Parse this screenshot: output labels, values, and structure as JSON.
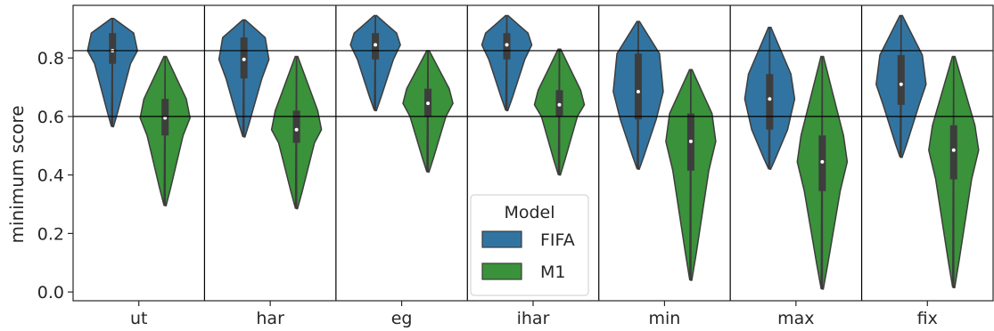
{
  "chart_data": {
    "type": "violin",
    "ylabel": "minimum score",
    "xlabel": "",
    "categories": [
      "ut",
      "har",
      "eg",
      "ihar",
      "min",
      "max",
      "fix"
    ],
    "ylim": [
      -0.03,
      0.98
    ],
    "yticks": [
      0.0,
      0.2,
      0.4,
      0.6,
      0.8
    ],
    "ytick_labels": [
      "0.0",
      "0.2",
      "0.4",
      "0.6",
      "0.8"
    ],
    "hlines": [
      0.6,
      0.825
    ],
    "vertical_separators": true,
    "legend": {
      "title": "Model",
      "position": "lower center",
      "entries": [
        "FIFA",
        "M1"
      ]
    },
    "colors": {
      "FIFA": "#3274a1",
      "M1": "#3a923a",
      "edge": "#3d3d3d"
    },
    "series": [
      {
        "name": "FIFA",
        "stats": [
          {
            "min": 0.565,
            "q1": 0.78,
            "median": 0.825,
            "q3": 0.885,
            "max": 0.935
          },
          {
            "min": 0.53,
            "q1": 0.73,
            "median": 0.795,
            "q3": 0.87,
            "max": 0.93
          },
          {
            "min": 0.62,
            "q1": 0.795,
            "median": 0.845,
            "q3": 0.885,
            "max": 0.945
          },
          {
            "min": 0.62,
            "q1": 0.795,
            "median": 0.845,
            "q3": 0.885,
            "max": 0.945
          },
          {
            "min": 0.42,
            "q1": 0.59,
            "median": 0.685,
            "q3": 0.815,
            "max": 0.925
          },
          {
            "min": 0.42,
            "q1": 0.555,
            "median": 0.66,
            "q3": 0.745,
            "max": 0.905
          },
          {
            "min": 0.46,
            "q1": 0.64,
            "median": 0.71,
            "q3": 0.81,
            "max": 0.945
          }
        ]
      },
      {
        "name": "M1",
        "stats": [
          {
            "min": 0.295,
            "q1": 0.535,
            "median": 0.595,
            "q3": 0.66,
            "max": 0.805
          },
          {
            "min": 0.285,
            "q1": 0.51,
            "median": 0.555,
            "q3": 0.62,
            "max": 0.805
          },
          {
            "min": 0.41,
            "q1": 0.6,
            "median": 0.645,
            "q3": 0.695,
            "max": 0.825
          },
          {
            "min": 0.4,
            "q1": 0.6,
            "median": 0.64,
            "q3": 0.69,
            "max": 0.83
          },
          {
            "min": 0.04,
            "q1": 0.415,
            "median": 0.515,
            "q3": 0.61,
            "max": 0.76
          },
          {
            "min": 0.01,
            "q1": 0.345,
            "median": 0.445,
            "q3": 0.535,
            "max": 0.805
          },
          {
            "min": 0.015,
            "q1": 0.385,
            "median": 0.485,
            "q3": 0.57,
            "max": 0.805
          }
        ]
      }
    ]
  }
}
